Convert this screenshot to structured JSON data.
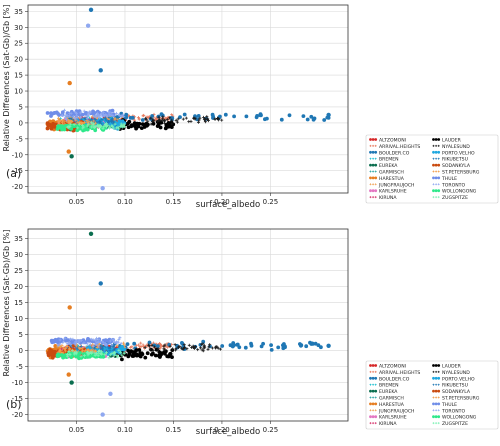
{
  "chart_data": [
    {
      "type": "scatter",
      "panel_label": "(a)",
      "xlabel": "surface_albedo",
      "ylabel": "Relative Differences (Sat-Gb)/Gb [%]",
      "xlim": [
        0.0,
        0.33
      ],
      "ylim": [
        -22,
        37
      ],
      "x_ticks": [
        "0.05",
        "0.10",
        "0.15",
        "0.20",
        "0.25"
      ],
      "x_tick_values": [
        0.05,
        0.1,
        0.15,
        0.2,
        0.25
      ],
      "y_ticks": [
        "-20",
        "-15",
        "-10",
        "-5",
        "0",
        "5",
        "10",
        "15",
        "20",
        "25",
        "30",
        "35"
      ],
      "y_tick_values": [
        -20,
        -15,
        -10,
        -5,
        0,
        5,
        10,
        15,
        20,
        25,
        30,
        35
      ],
      "grid": true,
      "legend_placement": "lower-right",
      "series": [
        {
          "name": "ALTZOMONI",
          "color": "#d62728",
          "style": "dot",
          "x_range": [
            0.04,
            0.1
          ],
          "y_center": 0.5,
          "y_spread": 1.5
        },
        {
          "name": "ARRIVAL.HEIGHTS",
          "color": "#e7785d",
          "style": "plus",
          "x_range": [
            0.1,
            0.15
          ],
          "y_center": 1.5,
          "y_spread": 1.5
        },
        {
          "name": "BOULDER.CO",
          "color": "#1f77b4",
          "style": "dot",
          "x_range": [
            0.08,
            0.31
          ],
          "y_center": 1.8,
          "y_spread": 1.5
        },
        {
          "name": "BREMEN",
          "color": "#17becf",
          "style": "plus",
          "x_range": [
            0.03,
            0.08
          ],
          "y_center": 0.5,
          "y_spread": 2.0
        },
        {
          "name": "EUREKA",
          "color": "#0b6e4f",
          "style": "dot",
          "x_range": [
            0.04,
            0.09
          ],
          "y_center": -1.0,
          "y_spread": 1.5
        },
        {
          "name": "GARMISCH",
          "color": "#2ca6a4",
          "style": "plus",
          "x_range": [
            0.03,
            0.09
          ],
          "y_center": -0.5,
          "y_spread": 2.0
        },
        {
          "name": "HARESTUA",
          "color": "#e67e22",
          "style": "dot",
          "x_range": [
            0.02,
            0.05
          ],
          "y_center": -0.5,
          "y_spread": 2.5
        },
        {
          "name": "JUNGFRAUJOCH",
          "color": "#f0a050",
          "style": "plus",
          "x_range": [
            0.03,
            0.1
          ],
          "y_center": 1.0,
          "y_spread": 2.0
        },
        {
          "name": "KARLSRUHE",
          "color": "#e377c2",
          "style": "dot",
          "x_range": [
            0.03,
            0.08
          ],
          "y_center": -0.5,
          "y_spread": 2.0
        },
        {
          "name": "KIRUNA",
          "color": "#d6336c",
          "style": "plus",
          "x_range": [
            0.03,
            0.08
          ],
          "y_center": 0.0,
          "y_spread": 2.0
        },
        {
          "name": "LAUDER",
          "color": "#000000",
          "style": "dot",
          "x_range": [
            0.09,
            0.15
          ],
          "y_center": -0.5,
          "y_spread": 2.0
        },
        {
          "name": "NYALESUND",
          "color": "#1a1a1a",
          "style": "plus",
          "x_range": [
            0.12,
            0.2
          ],
          "y_center": 1.0,
          "y_spread": 1.5
        },
        {
          "name": "PORTO.VELHO",
          "color": "#1fa8e0",
          "style": "dot",
          "x_range": [
            0.05,
            0.1
          ],
          "y_center": 0.0,
          "y_spread": 2.0
        },
        {
          "name": "RIKUBETSU",
          "color": "#1f77b4",
          "style": "plus",
          "x_range": [
            0.04,
            0.09
          ],
          "y_center": 0.5,
          "y_spread": 2.0
        },
        {
          "name": "SODANKYLA",
          "color": "#c94a0f",
          "style": "dot",
          "x_range": [
            0.02,
            0.06
          ],
          "y_center": -0.8,
          "y_spread": 2.5
        },
        {
          "name": "ST.PETERSBURG",
          "color": "#f29e4c",
          "style": "plus",
          "x_range": [
            0.03,
            0.07
          ],
          "y_center": 0.0,
          "y_spread": 2.0
        },
        {
          "name": "THULE",
          "color": "#6f8de8",
          "style": "dot",
          "x_range": [
            0.02,
            0.09
          ],
          "y_center": 3.0,
          "y_spread": 1.2
        },
        {
          "name": "TORONTO",
          "color": "#8fa8f0",
          "style": "plus",
          "x_range": [
            0.03,
            0.1
          ],
          "y_center": 2.5,
          "y_spread": 2.0
        },
        {
          "name": "WOLLONGONG",
          "color": "#2ee88a",
          "style": "dot",
          "x_range": [
            0.03,
            0.08
          ],
          "y_center": -1.5,
          "y_spread": 1.2
        },
        {
          "name": "ZUGSPITZE",
          "color": "#7ef2b5",
          "style": "plus",
          "x_range": [
            0.04,
            0.1
          ],
          "y_center": -1.0,
          "y_spread": 1.5
        }
      ],
      "notable_points": [
        {
          "x": 0.065,
          "y": 35.5,
          "color": "#1f77b4"
        },
        {
          "x": 0.075,
          "y": 16.5,
          "color": "#1f77b4"
        },
        {
          "x": 0.043,
          "y": 12.5,
          "color": "#e67e22"
        },
        {
          "x": 0.045,
          "y": -10.5,
          "color": "#0b6e4f"
        },
        {
          "x": 0.042,
          "y": -9.0,
          "color": "#e67e22"
        },
        {
          "x": 0.077,
          "y": -20.5,
          "color": "#8fa8f0"
        },
        {
          "x": 0.062,
          "y": 30.5,
          "color": "#8fa8f0"
        },
        {
          "x": 0.31,
          "y": 2.5,
          "color": "#1f77b4"
        }
      ]
    },
    {
      "type": "scatter",
      "panel_label": "(b)",
      "xlabel": "surface_albedo",
      "ylabel": "Relative Differences (Sat-Gb)/Gb [%]",
      "xlim": [
        0.0,
        0.33
      ],
      "ylim": [
        -22,
        38
      ],
      "x_ticks": [
        "0.05",
        "0.10",
        "0.15",
        "0.20",
        "0.25"
      ],
      "x_tick_values": [
        0.05,
        0.1,
        0.15,
        0.2,
        0.25
      ],
      "y_ticks": [
        "-20",
        "-15",
        "-10",
        "-5",
        "0",
        "5",
        "10",
        "15",
        "20",
        "25",
        "30",
        "35"
      ],
      "y_tick_values": [
        -20,
        -15,
        -10,
        -5,
        0,
        5,
        10,
        15,
        20,
        25,
        30,
        35
      ],
      "grid": true,
      "legend_placement": "lower-right",
      "series": [
        {
          "name": "ALTZOMONI",
          "color": "#d62728",
          "style": "dot",
          "x_range": [
            0.04,
            0.1
          ],
          "y_center": 0.5,
          "y_spread": 1.5
        },
        {
          "name": "ARRIVAL.HEIGHTS",
          "color": "#e7785d",
          "style": "plus",
          "x_range": [
            0.1,
            0.15
          ],
          "y_center": 1.5,
          "y_spread": 1.5
        },
        {
          "name": "BOULDER.CO",
          "color": "#1f77b4",
          "style": "dot",
          "x_range": [
            0.08,
            0.31
          ],
          "y_center": 1.6,
          "y_spread": 1.5
        },
        {
          "name": "BREMEN",
          "color": "#17becf",
          "style": "plus",
          "x_range": [
            0.03,
            0.08
          ],
          "y_center": 0.5,
          "y_spread": 2.0
        },
        {
          "name": "EUREKA",
          "color": "#0b6e4f",
          "style": "dot",
          "x_range": [
            0.04,
            0.09
          ],
          "y_center": -1.0,
          "y_spread": 1.5
        },
        {
          "name": "GARMISCH",
          "color": "#2ca6a4",
          "style": "plus",
          "x_range": [
            0.03,
            0.09
          ],
          "y_center": -0.5,
          "y_spread": 2.0
        },
        {
          "name": "HARESTUA",
          "color": "#e67e22",
          "style": "dot",
          "x_range": [
            0.02,
            0.05
          ],
          "y_center": -0.5,
          "y_spread": 2.5
        },
        {
          "name": "JUNGFRAUJOCH",
          "color": "#f0a050",
          "style": "plus",
          "x_range": [
            0.03,
            0.1
          ],
          "y_center": 1.0,
          "y_spread": 2.0
        },
        {
          "name": "KARLSRUHE",
          "color": "#e377c2",
          "style": "dot",
          "x_range": [
            0.03,
            0.08
          ],
          "y_center": -0.5,
          "y_spread": 2.0
        },
        {
          "name": "KIRUNA",
          "color": "#d6336c",
          "style": "plus",
          "x_range": [
            0.03,
            0.08
          ],
          "y_center": 0.0,
          "y_spread": 2.0
        },
        {
          "name": "LAUDER",
          "color": "#000000",
          "style": "dot",
          "x_range": [
            0.09,
            0.15
          ],
          "y_center": -1.0,
          "y_spread": 2.5
        },
        {
          "name": "NYALESUND",
          "color": "#1a1a1a",
          "style": "plus",
          "x_range": [
            0.12,
            0.2
          ],
          "y_center": 1.0,
          "y_spread": 1.5
        },
        {
          "name": "PORTO.VELHO",
          "color": "#1fa8e0",
          "style": "dot",
          "x_range": [
            0.05,
            0.1
          ],
          "y_center": 0.0,
          "y_spread": 2.0
        },
        {
          "name": "RIKUBETSU",
          "color": "#1f77b4",
          "style": "plus",
          "x_range": [
            0.04,
            0.09
          ],
          "y_center": 0.5,
          "y_spread": 2.0
        },
        {
          "name": "SODANKYLA",
          "color": "#c94a0f",
          "style": "dot",
          "x_range": [
            0.02,
            0.06
          ],
          "y_center": -0.8,
          "y_spread": 2.5
        },
        {
          "name": "ST.PETERSBURG",
          "color": "#f29e4c",
          "style": "plus",
          "x_range": [
            0.03,
            0.07
          ],
          "y_center": 0.0,
          "y_spread": 2.0
        },
        {
          "name": "THULE",
          "color": "#6f8de8",
          "style": "dot",
          "x_range": [
            0.02,
            0.09
          ],
          "y_center": 3.0,
          "y_spread": 1.2
        },
        {
          "name": "TORONTO",
          "color": "#8fa8f0",
          "style": "plus",
          "x_range": [
            0.03,
            0.1
          ],
          "y_center": 2.5,
          "y_spread": 2.0
        },
        {
          "name": "WOLLONGONG",
          "color": "#2ee88a",
          "style": "dot",
          "x_range": [
            0.03,
            0.08
          ],
          "y_center": -1.5,
          "y_spread": 1.2
        },
        {
          "name": "ZUGSPITZE",
          "color": "#7ef2b5",
          "style": "plus",
          "x_range": [
            0.04,
            0.1
          ],
          "y_center": -1.0,
          "y_spread": 1.5
        }
      ],
      "notable_points": [
        {
          "x": 0.065,
          "y": 36.5,
          "color": "#0b6e4f"
        },
        {
          "x": 0.075,
          "y": 21.0,
          "color": "#1f77b4"
        },
        {
          "x": 0.043,
          "y": 13.5,
          "color": "#e67e22"
        },
        {
          "x": 0.045,
          "y": -10.0,
          "color": "#0b6e4f"
        },
        {
          "x": 0.042,
          "y": -7.5,
          "color": "#e67e22"
        },
        {
          "x": 0.077,
          "y": -20.0,
          "color": "#8fa8f0"
        },
        {
          "x": 0.085,
          "y": -13.5,
          "color": "#8fa8f0"
        },
        {
          "x": 0.31,
          "y": 1.5,
          "color": "#1f77b4"
        }
      ]
    }
  ]
}
